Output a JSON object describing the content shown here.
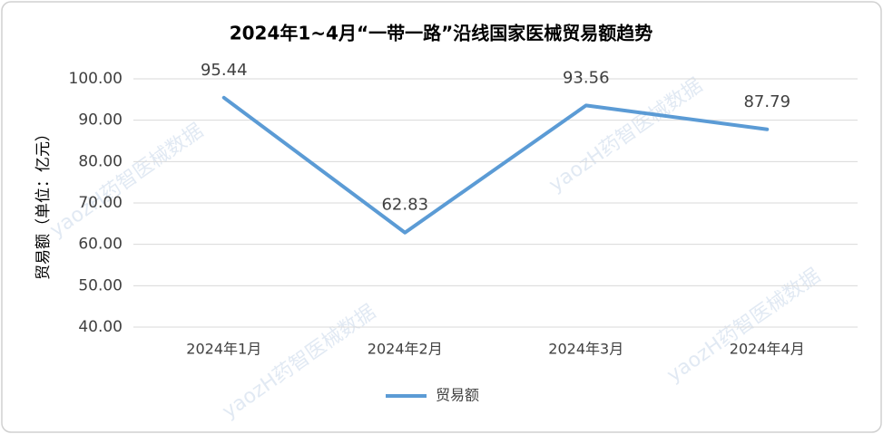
{
  "chart_data": {
    "type": "line",
    "title": "2024年1~4月“一带一路”沿线国家医械贸易额趋势",
    "y_axis_label": "贸易额（单位：亿元）",
    "watermark": "yaozH药智医械数据",
    "categories": [
      "2024年1月",
      "2024年2月",
      "2024年3月",
      "2024年4月"
    ],
    "series": [
      {
        "name": "贸易额",
        "color": "#5b9bd5",
        "values": [
          95.44,
          62.83,
          93.56,
          87.79
        ]
      }
    ],
    "ylim": [
      40,
      100
    ],
    "yticks": [
      {
        "value": 40,
        "label": "40.00"
      },
      {
        "value": 50,
        "label": "50.00"
      },
      {
        "value": 60,
        "label": "60.00"
      },
      {
        "value": 70,
        "label": "70.00"
      },
      {
        "value": 80,
        "label": "80.00"
      },
      {
        "value": 90,
        "label": "90.00"
      },
      {
        "value": 100,
        "label": "100.00"
      }
    ],
    "grid": true,
    "legend": "bottom"
  }
}
